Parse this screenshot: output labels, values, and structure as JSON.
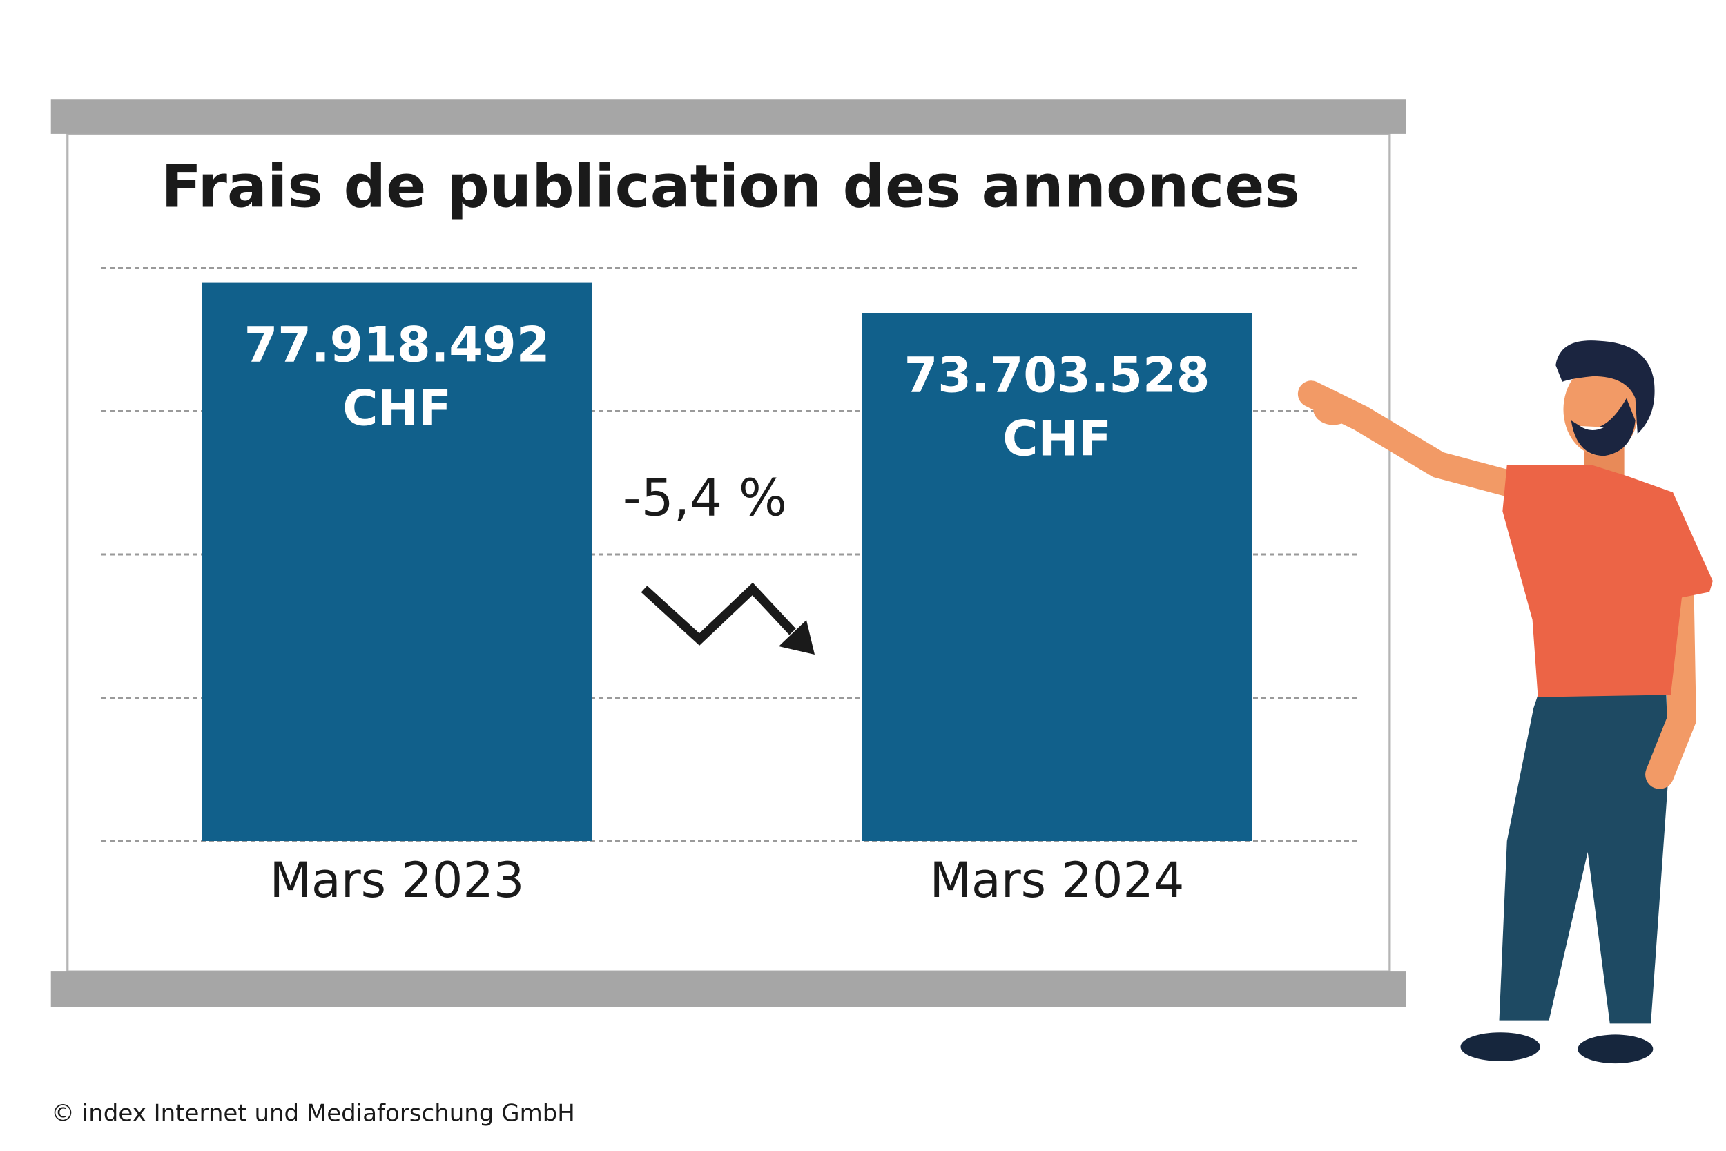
{
  "chart_data": {
    "type": "bar",
    "title": "Frais de publication des annonces",
    "categories": [
      "Mars 2023",
      "Mars 2024"
    ],
    "values": [
      77918492,
      73703528
    ],
    "value_labels": [
      "77.918.492 CHF",
      "73.703.528 CHF"
    ],
    "color": "#11608b",
    "ylim": [
      0,
      80000000
    ],
    "yticks": [
      0,
      20000000,
      40000000,
      60000000,
      80000000
    ],
    "grid": true,
    "annotation": "-5,4 %",
    "source": "© index Internet und Mediaforschung GmbH"
  }
}
